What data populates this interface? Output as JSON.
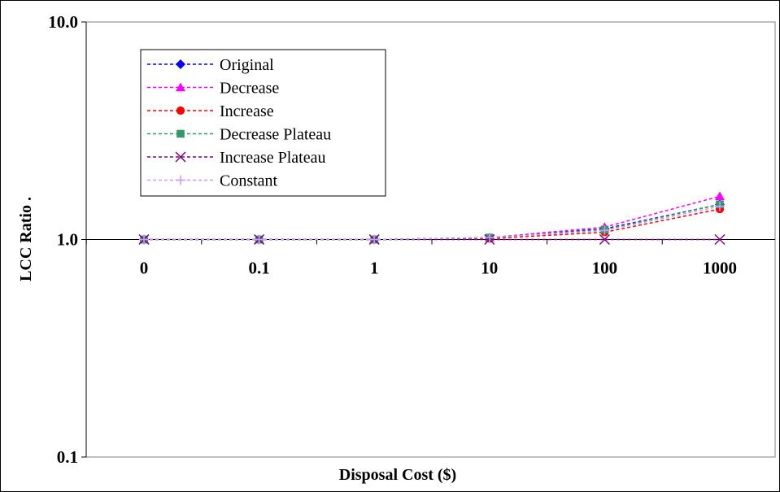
{
  "chart_data": {
    "type": "line",
    "title": "",
    "xlabel": "Disposal Cost ($)",
    "ylabel": "LCC Ratio .",
    "y_scale": "log",
    "ylim": [
      0.1,
      10.0
    ],
    "ytick_labels": [
      "10.0",
      "1.0",
      "0.1"
    ],
    "categories": [
      "0",
      "0.1",
      "1",
      "10",
      "100",
      "1000"
    ],
    "grid": false,
    "legend_position": "top-left",
    "series": [
      {
        "name": "Original",
        "values": [
          1.0,
          1.0,
          1.0,
          1.02,
          1.12,
          1.45
        ],
        "color": "#0000ff",
        "marker": "diamond"
      },
      {
        "name": "Decrease",
        "values": [
          1.0,
          1.0,
          1.0,
          1.02,
          1.14,
          1.58
        ],
        "color": "#ff00ff",
        "marker": "triangle"
      },
      {
        "name": "Increase",
        "values": [
          1.0,
          1.0,
          1.0,
          1.01,
          1.08,
          1.38
        ],
        "color": "#ff0000",
        "marker": "circle"
      },
      {
        "name": "Decrease Plateau",
        "values": [
          1.0,
          1.0,
          1.0,
          1.02,
          1.11,
          1.45
        ],
        "color": "#339966",
        "marker": "square"
      },
      {
        "name": "Increase Plateau",
        "values": [
          1.0,
          1.0,
          1.0,
          1.0,
          1.0,
          1.0
        ],
        "color": "#800080",
        "marker": "x"
      },
      {
        "name": "Constant",
        "values": [
          1.0,
          1.0,
          1.0,
          1.02,
          1.1,
          1.42
        ],
        "color": "#cc99ff",
        "marker": "plus"
      }
    ]
  }
}
